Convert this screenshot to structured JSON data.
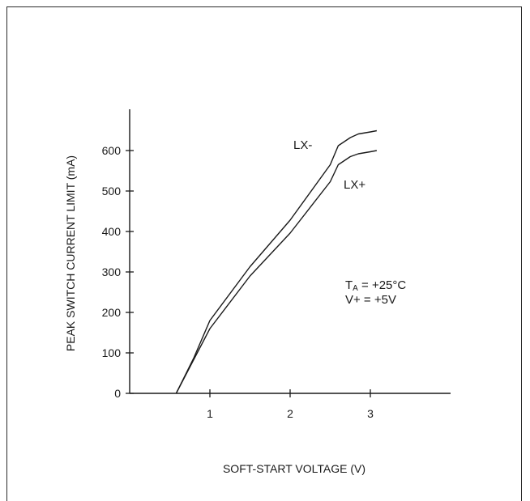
{
  "chart_data": {
    "type": "line",
    "title": "",
    "xlabel": "SOFT-START VOLTAGE (V)",
    "ylabel": "PEAK SWITCH CURRENT LIMIT (mA)",
    "xlim": [
      0,
      4
    ],
    "ylim": [
      0,
      700
    ],
    "xticks": [
      1,
      2,
      3
    ],
    "xtick_labels": [
      "1",
      "2",
      "3"
    ],
    "yticks": [
      0,
      100,
      200,
      300,
      400,
      500,
      600
    ],
    "ytick_labels": [
      "0",
      "100",
      "200",
      "300",
      "400",
      "500",
      "600"
    ],
    "grid": false,
    "series": [
      {
        "name": "LX-",
        "x": [
          0.58,
          0.8,
          1.0,
          1.5,
          2.0,
          2.5,
          2.6,
          2.75,
          2.85,
          3.0,
          3.08
        ],
        "y": [
          0,
          88,
          180,
          313,
          428,
          565,
          612,
          632,
          641,
          646,
          649
        ]
      },
      {
        "name": "LX+",
        "x": [
          0.58,
          0.8,
          1.0,
          1.5,
          2.0,
          2.5,
          2.6,
          2.75,
          2.85,
          3.0,
          3.08
        ],
        "y": [
          0,
          84,
          160,
          290,
          396,
          523,
          565,
          585,
          592,
          597,
          600
        ]
      }
    ],
    "annotations": {
      "ta_main": "T",
      "ta_sub": "A",
      "ta_value": " = +25°C",
      "vplus": "V+ = +5V"
    }
  }
}
